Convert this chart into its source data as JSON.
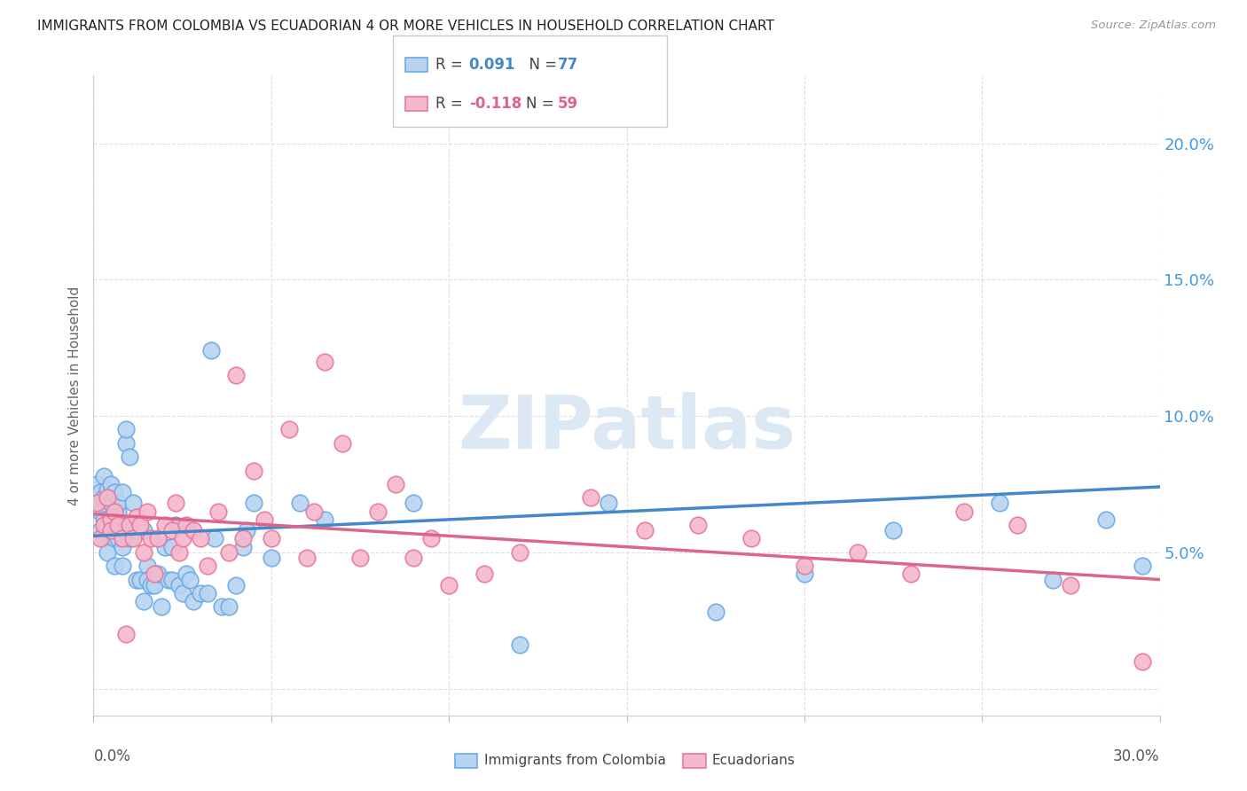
{
  "title": "IMMIGRANTS FROM COLOMBIA VS ECUADORIAN 4 OR MORE VEHICLES IN HOUSEHOLD CORRELATION CHART",
  "source": "Source: ZipAtlas.com",
  "ylabel": "4 or more Vehicles in Household",
  "watermark": "ZIPatlas",
  "series1_label": "Immigrants from Colombia",
  "series2_label": "Ecuadorians",
  "series1_R": 0.091,
  "series1_N": 77,
  "series2_R": -0.118,
  "series2_N": 59,
  "color1_face": "#b8d4f0",
  "color2_face": "#f5b8cc",
  "color1_edge": "#6aaae8",
  "color2_edge": "#e87898",
  "line1_color": "#4488cc",
  "line2_color": "#dd6688",
  "right_label_color": "#4499dd",
  "ytick_labels": [
    "",
    "5.0%",
    "10.0%",
    "15.0%",
    "20.0%"
  ],
  "ytick_values": [
    0.0,
    0.05,
    0.1,
    0.15,
    0.2
  ],
  "xmin": 0.0,
  "xmax": 0.3,
  "ymin": -0.01,
  "ymax": 0.225,
  "series1_x": [
    0.001,
    0.001,
    0.002,
    0.002,
    0.002,
    0.003,
    0.003,
    0.003,
    0.003,
    0.004,
    0.004,
    0.004,
    0.005,
    0.005,
    0.005,
    0.005,
    0.006,
    0.006,
    0.006,
    0.006,
    0.007,
    0.007,
    0.007,
    0.008,
    0.008,
    0.008,
    0.009,
    0.009,
    0.01,
    0.01,
    0.01,
    0.011,
    0.012,
    0.012,
    0.013,
    0.013,
    0.014,
    0.014,
    0.015,
    0.015,
    0.016,
    0.017,
    0.018,
    0.019,
    0.02,
    0.021,
    0.022,
    0.022,
    0.023,
    0.024,
    0.025,
    0.026,
    0.027,
    0.028,
    0.03,
    0.032,
    0.033,
    0.034,
    0.036,
    0.038,
    0.04,
    0.042,
    0.043,
    0.045,
    0.05,
    0.058,
    0.065,
    0.09,
    0.12,
    0.145,
    0.175,
    0.2,
    0.225,
    0.255,
    0.27,
    0.285,
    0.295
  ],
  "series1_y": [
    0.075,
    0.068,
    0.072,
    0.065,
    0.058,
    0.078,
    0.07,
    0.062,
    0.055,
    0.073,
    0.06,
    0.05,
    0.068,
    0.075,
    0.058,
    0.063,
    0.055,
    0.072,
    0.06,
    0.045,
    0.065,
    0.055,
    0.068,
    0.072,
    0.052,
    0.045,
    0.09,
    0.095,
    0.085,
    0.06,
    0.055,
    0.068,
    0.04,
    0.058,
    0.06,
    0.04,
    0.058,
    0.032,
    0.045,
    0.04,
    0.038,
    0.038,
    0.042,
    0.03,
    0.052,
    0.04,
    0.04,
    0.052,
    0.06,
    0.038,
    0.035,
    0.042,
    0.04,
    0.032,
    0.035,
    0.035,
    0.124,
    0.055,
    0.03,
    0.03,
    0.038,
    0.052,
    0.058,
    0.068,
    0.048,
    0.068,
    0.062,
    0.068,
    0.016,
    0.068,
    0.028,
    0.042,
    0.058,
    0.068,
    0.04,
    0.062,
    0.045
  ],
  "series2_x": [
    0.001,
    0.002,
    0.003,
    0.004,
    0.005,
    0.005,
    0.006,
    0.007,
    0.008,
    0.009,
    0.01,
    0.011,
    0.012,
    0.013,
    0.014,
    0.015,
    0.016,
    0.017,
    0.018,
    0.02,
    0.022,
    0.023,
    0.024,
    0.025,
    0.026,
    0.028,
    0.03,
    0.032,
    0.035,
    0.038,
    0.04,
    0.042,
    0.045,
    0.048,
    0.05,
    0.055,
    0.06,
    0.062,
    0.065,
    0.07,
    0.075,
    0.08,
    0.085,
    0.09,
    0.095,
    0.1,
    0.11,
    0.12,
    0.14,
    0.155,
    0.17,
    0.185,
    0.2,
    0.215,
    0.23,
    0.245,
    0.26,
    0.275,
    0.295
  ],
  "series2_y": [
    0.068,
    0.055,
    0.06,
    0.07,
    0.062,
    0.058,
    0.065,
    0.06,
    0.055,
    0.02,
    0.06,
    0.055,
    0.063,
    0.06,
    0.05,
    0.065,
    0.055,
    0.042,
    0.055,
    0.06,
    0.058,
    0.068,
    0.05,
    0.055,
    0.06,
    0.058,
    0.055,
    0.045,
    0.065,
    0.05,
    0.115,
    0.055,
    0.08,
    0.062,
    0.055,
    0.095,
    0.048,
    0.065,
    0.12,
    0.09,
    0.048,
    0.065,
    0.075,
    0.048,
    0.055,
    0.038,
    0.042,
    0.05,
    0.07,
    0.058,
    0.06,
    0.055,
    0.045,
    0.05,
    0.042,
    0.065,
    0.06,
    0.038,
    0.01
  ],
  "line1_y_start": 0.056,
  "line1_y_end": 0.074,
  "line2_y_start": 0.064,
  "line2_y_end": 0.04,
  "grid_color": "#e0e0e0",
  "marker_size": 180
}
